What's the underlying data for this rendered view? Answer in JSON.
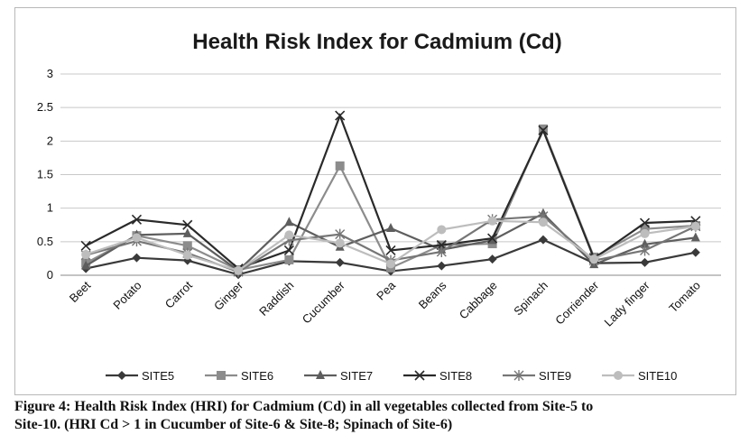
{
  "chart_data": {
    "type": "line",
    "title": "Health Risk Index for Cadmium (Cd)",
    "xlabel": "",
    "ylabel": "",
    "ylim": [
      0,
      3
    ],
    "yticks": [
      "0",
      "0.5",
      "1",
      "1.5",
      "2",
      "2.5",
      "3"
    ],
    "grid": true,
    "legend_position": "bottom",
    "categories": [
      "Beet",
      "Potato",
      "Carrot",
      "Ginger",
      "Raddish",
      "Cucumber",
      "Pea",
      "Beans",
      "Cabbage",
      "Spinach",
      "Corriender",
      "Lady finger",
      "Tomato"
    ],
    "series": [
      {
        "name": "SITE5",
        "marker": "diamond",
        "color": "#3a3a3a",
        "values": [
          0.1,
          0.26,
          0.22,
          0.01,
          0.21,
          0.19,
          0.06,
          0.14,
          0.24,
          0.53,
          0.18,
          0.19,
          0.34
        ]
      },
      {
        "name": "SITE6",
        "marker": "square",
        "color": "#8c8c8c",
        "values": [
          0.18,
          0.59,
          0.44,
          0.08,
          0.23,
          1.63,
          0.11,
          0.45,
          0.47,
          2.18,
          0.27,
          0.69,
          0.74
        ]
      },
      {
        "name": "SITE7",
        "marker": "triangle",
        "color": "#5e5e5e",
        "values": [
          0.14,
          0.6,
          0.62,
          0.07,
          0.79,
          0.42,
          0.7,
          0.38,
          0.52,
          0.92,
          0.16,
          0.46,
          0.56
        ]
      },
      {
        "name": "SITE8",
        "marker": "x",
        "color": "#2a2a2a",
        "values": [
          0.44,
          0.83,
          0.75,
          0.1,
          0.37,
          2.38,
          0.37,
          0.45,
          0.55,
          2.16,
          0.25,
          0.78,
          0.81
        ]
      },
      {
        "name": "SITE9",
        "marker": "star",
        "color": "#767676",
        "values": [
          0.3,
          0.51,
          0.33,
          0.05,
          0.52,
          0.61,
          0.22,
          0.35,
          0.83,
          0.88,
          0.22,
          0.37,
          0.73
        ]
      },
      {
        "name": "SITE10",
        "marker": "circle",
        "color": "#bdbdbd",
        "values": [
          0.31,
          0.56,
          0.3,
          0.07,
          0.6,
          0.48,
          0.17,
          0.68,
          0.81,
          0.79,
          0.24,
          0.62,
          0.73
        ]
      }
    ]
  },
  "caption": {
    "line1": "Figure 4: Health Risk Index (HRI) for Cadmium (Cd) in all vegetables collected from Site-5 to",
    "line2": "Site-10. (HRI Cd > 1 in Cucumber of Site-6 & Site-8; Spinach of Site-6)"
  }
}
